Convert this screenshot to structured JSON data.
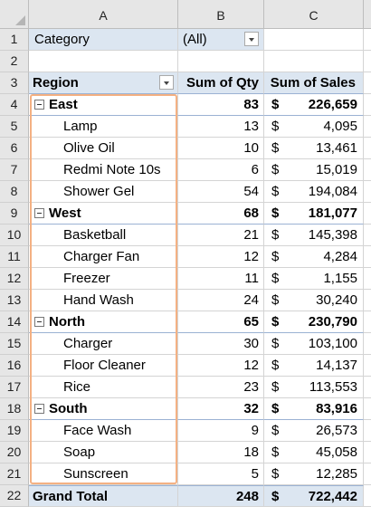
{
  "columns": [
    "A",
    "B",
    "C"
  ],
  "filter": {
    "label": "Category",
    "value": "(All)"
  },
  "header": {
    "row_label": "Region",
    "qty": "Sum of Qty",
    "sales": "Sum of Sales"
  },
  "currency": "$",
  "rows": [
    {
      "n": "4",
      "kind": "region",
      "label": "East",
      "qty": "83",
      "sales": "226,659"
    },
    {
      "n": "5",
      "kind": "item",
      "label": "Lamp",
      "qty": "13",
      "sales": "4,095"
    },
    {
      "n": "6",
      "kind": "item",
      "label": "Olive Oil",
      "qty": "10",
      "sales": "13,461"
    },
    {
      "n": "7",
      "kind": "item",
      "label": "Redmi Note 10s",
      "qty": "6",
      "sales": "15,019"
    },
    {
      "n": "8",
      "kind": "item",
      "label": "Shower Gel",
      "qty": "54",
      "sales": "194,084"
    },
    {
      "n": "9",
      "kind": "region",
      "label": "West",
      "qty": "68",
      "sales": "181,077"
    },
    {
      "n": "10",
      "kind": "item",
      "label": "Basketball",
      "qty": "21",
      "sales": "145,398"
    },
    {
      "n": "11",
      "kind": "item",
      "label": "Charger  Fan",
      "qty": "12",
      "sales": "4,284"
    },
    {
      "n": "12",
      "kind": "item",
      "label": "Freezer",
      "qty": "11",
      "sales": "1,155"
    },
    {
      "n": "13",
      "kind": "item",
      "label": "Hand Wash",
      "qty": "24",
      "sales": "30,240"
    },
    {
      "n": "14",
      "kind": "region",
      "label": "North",
      "qty": "65",
      "sales": "230,790"
    },
    {
      "n": "15",
      "kind": "item",
      "label": "Charger",
      "qty": "30",
      "sales": "103,100"
    },
    {
      "n": "16",
      "kind": "item",
      "label": "Floor Cleaner",
      "qty": "12",
      "sales": "14,137"
    },
    {
      "n": "17",
      "kind": "item",
      "label": "Rice",
      "qty": "23",
      "sales": "113,553"
    },
    {
      "n": "18",
      "kind": "region",
      "label": "South",
      "qty": "32",
      "sales": "83,916"
    },
    {
      "n": "19",
      "kind": "item",
      "label": "Face Wash",
      "qty": "9",
      "sales": "26,573"
    },
    {
      "n": "20",
      "kind": "item",
      "label": "Soap",
      "qty": "18",
      "sales": "45,058"
    },
    {
      "n": "21",
      "kind": "item",
      "label": "Sunscreen",
      "qty": "5",
      "sales": "12,285"
    }
  ],
  "grand_total": {
    "n": "22",
    "label": "Grand Total",
    "qty": "248",
    "sales": "722,442"
  },
  "row_numbers_top": [
    "1",
    "2",
    "3"
  ],
  "colors": {
    "header_fill": "#dce6f1",
    "highlight_outline": "#f4b183",
    "grid": "#d4d4d4"
  }
}
